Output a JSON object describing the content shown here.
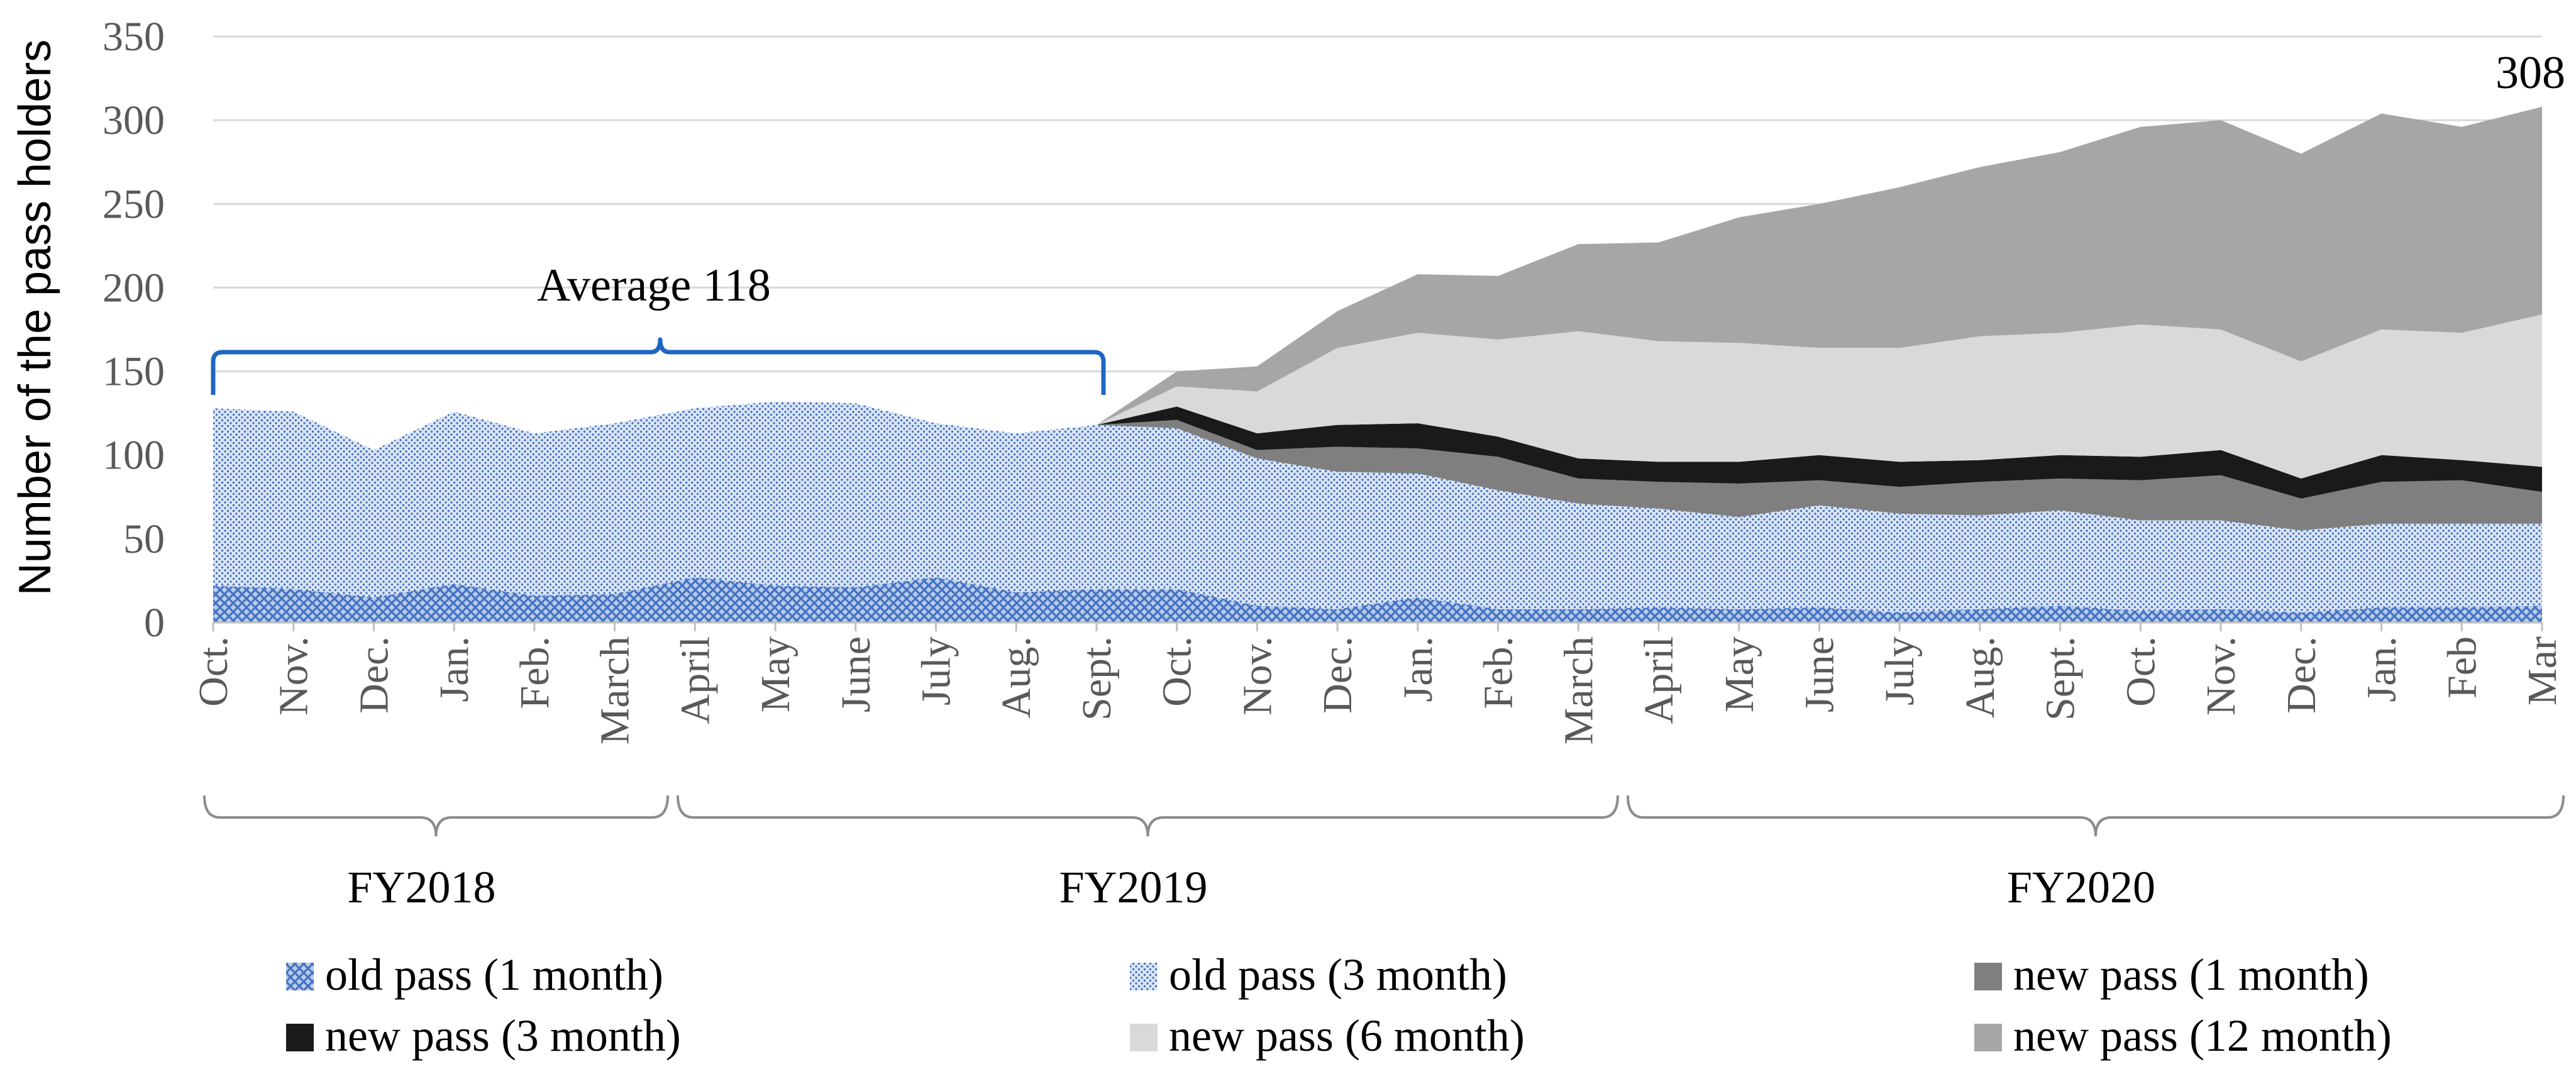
{
  "chart_data": {
    "type": "area",
    "stacked": true,
    "ylabel": "Number of the pass holders",
    "ylim": [
      0,
      350
    ],
    "yticks": [
      0,
      50,
      100,
      150,
      200,
      250,
      300,
      350
    ],
    "categories": [
      "Oct.",
      "Nov.",
      "Dec.",
      "Jan.",
      "Feb.",
      "March",
      "April",
      "May",
      "June",
      "July",
      "Aug.",
      "Sept.",
      "Oct.",
      "Nov.",
      "Dec.",
      "Jan.",
      "Feb.",
      "March",
      "April",
      "May",
      "June",
      "July",
      "Aug.",
      "Sept.",
      "Oct.",
      "Nov.",
      "Dec.",
      "Jan.",
      "Feb",
      "Mar"
    ],
    "series": [
      {
        "name": "old pass (1 month)",
        "color": "#4472c4",
        "pattern": "cross-hatch",
        "values": [
          22,
          20,
          15,
          23,
          16,
          17,
          27,
          22,
          21,
          27,
          18,
          20,
          20,
          10,
          8,
          15,
          8,
          8,
          9,
          8,
          9,
          6,
          8,
          10,
          7,
          8,
          6,
          9,
          9,
          10
        ]
      },
      {
        "name": "old pass (3 month)",
        "color": "#4472c4",
        "pattern": "dots",
        "values": [
          106,
          106,
          88,
          103,
          97,
          102,
          101,
          110,
          110,
          92,
          95,
          98,
          96,
          88,
          82,
          74,
          71,
          63,
          59,
          55,
          61,
          59,
          56,
          57,
          54,
          53,
          49,
          50,
          50,
          49
        ]
      },
      {
        "name": "new pass (1 month)",
        "color": "#7f7f7f",
        "values": [
          0,
          0,
          0,
          0,
          0,
          0,
          0,
          0,
          0,
          0,
          0,
          0,
          5,
          5,
          15,
          15,
          20,
          15,
          16,
          20,
          15,
          16,
          20,
          19,
          24,
          27,
          19,
          25,
          26,
          19
        ]
      },
      {
        "name": "new pass (3 month)",
        "color": "#1a1a1a",
        "values": [
          0,
          0,
          0,
          0,
          0,
          0,
          0,
          0,
          0,
          0,
          0,
          0,
          8,
          10,
          13,
          15,
          12,
          12,
          12,
          13,
          15,
          15,
          13,
          14,
          14,
          15,
          12,
          16,
          12,
          15
        ]
      },
      {
        "name": "new pass (6 month)",
        "color": "#d9d9d9",
        "values": [
          0,
          0,
          0,
          0,
          0,
          0,
          0,
          0,
          0,
          0,
          0,
          0,
          12,
          25,
          46,
          54,
          58,
          76,
          72,
          71,
          64,
          68,
          74,
          73,
          79,
          72,
          70,
          75,
          76,
          91
        ]
      },
      {
        "name": "new pass (12 month)",
        "color": "#a6a6a6",
        "values": [
          0,
          0,
          0,
          0,
          0,
          0,
          0,
          0,
          0,
          0,
          0,
          0,
          9,
          15,
          22,
          35,
          38,
          52,
          59,
          75,
          86,
          96,
          101,
          108,
          118,
          125,
          124,
          129,
          123,
          124
        ]
      }
    ],
    "annotations": {
      "average_label": "Average 118",
      "end_total_label": "308"
    },
    "fiscal_years": [
      "FY2018",
      "FY2019",
      "FY2020"
    ],
    "legend_position": "bottom",
    "grid": true
  }
}
